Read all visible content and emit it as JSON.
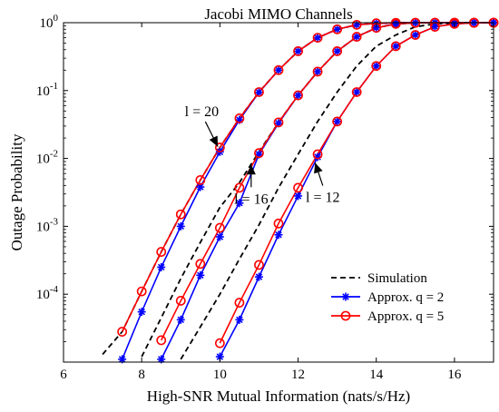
{
  "chart_data": {
    "type": "line",
    "title": "Jacobi MIMO Channels",
    "xlabel": "High-SNR Mutual Information (nats/s/Hz)",
    "ylabel": "Outage Probability",
    "xlim": [
      6,
      17
    ],
    "ylim": [
      1e-05,
      1
    ],
    "yscale": "log",
    "grid": false,
    "legend_position": "bottom-right",
    "x_ticks": [
      "6",
      "8",
      "10",
      "12",
      "14",
      "16"
    ],
    "y_tick_labels": [
      {
        "base": "10",
        "exp": "0"
      },
      {
        "base": "10",
        "exp": "-1"
      },
      {
        "base": "10",
        "exp": "-2"
      },
      {
        "base": "10",
        "exp": "-3"
      },
      {
        "base": "10",
        "exp": "-4"
      }
    ],
    "legend": [
      "Simulation",
      "Approx. q = 2",
      "Approx. q = 5"
    ],
    "annotations": [
      {
        "text": "l = 20",
        "x": 10,
        "y": 0.013
      },
      {
        "text": "l = 16",
        "x": 10.8,
        "y": 0.0095
      },
      {
        "text": "l =  12",
        "x": 12.4,
        "y": 0.01
      }
    ],
    "colors": {
      "simulation": "#000000",
      "q2": "#0000ff",
      "q5": "#ff0000"
    },
    "series": [
      {
        "name": "Simulation",
        "group": "l = 20",
        "style": "dashed",
        "x": [
          7.0,
          7.5,
          8.0,
          8.5,
          9.0,
          9.5,
          10.0,
          10.5,
          11.0,
          11.5,
          12.0,
          12.5,
          13.0,
          13.5,
          14.0,
          14.5,
          15.0,
          15.5,
          16.0,
          16.5,
          17.0
        ],
        "y": [
          1.3e-05,
          2.8e-05,
          0.00011,
          0.00042,
          0.0015,
          0.0048,
          0.0145,
          0.039,
          0.095,
          0.2,
          0.38,
          0.6,
          0.8,
          0.93,
          0.98,
          0.997,
          1,
          1,
          1,
          1,
          1
        ]
      },
      {
        "name": "Approx. q = 2",
        "group": "l = 20",
        "x": [
          7.5,
          8.0,
          8.5,
          9.0,
          9.5,
          10.0,
          10.5,
          11.0,
          11.5,
          12.0,
          12.5,
          13.0,
          13.5,
          14.0,
          14.5,
          15.0,
          15.5,
          16.0,
          16.5,
          17.0
        ],
        "y": [
          1.1e-05,
          5.5e-05,
          0.00025,
          0.001,
          0.0038,
          0.0125,
          0.037,
          0.094,
          0.2,
          0.38,
          0.6,
          0.8,
          0.93,
          0.98,
          0.997,
          1,
          1,
          1,
          1,
          1
        ]
      },
      {
        "name": "Approx. q = 5",
        "group": "l = 20",
        "x": [
          7.5,
          8.0,
          8.5,
          9.0,
          9.5,
          10.0,
          10.5,
          11.0,
          11.5,
          12.0,
          12.5,
          13.0,
          13.5,
          14.0,
          14.5,
          15.0,
          15.5,
          16.0,
          16.5,
          17.0
        ],
        "y": [
          2.8e-05,
          0.00011,
          0.00042,
          0.0015,
          0.0048,
          0.0145,
          0.039,
          0.095,
          0.2,
          0.38,
          0.6,
          0.8,
          0.93,
          0.98,
          0.997,
          1,
          1,
          1,
          1,
          1
        ]
      },
      {
        "name": "Simulation",
        "group": "l = 16",
        "style": "dashed",
        "x": [
          8.0,
          8.5,
          9.0,
          9.5,
          10.0,
          10.5,
          11.0,
          11.5,
          12.0,
          12.5,
          13.0,
          13.5,
          14.0,
          14.5,
          15.0,
          15.5,
          16.0,
          16.5,
          17.0
        ],
        "y": [
          1.2e-05,
          4.5e-05,
          0.00017,
          0.00058,
          0.0019,
          0.0044,
          0.0125,
          0.034,
          0.085,
          0.19,
          0.38,
          0.62,
          0.84,
          0.96,
          0.995,
          1,
          1,
          1,
          1
        ]
      },
      {
        "name": "Approx. q = 2",
        "group": "l = 16",
        "x": [
          8.5,
          9.0,
          9.5,
          10.0,
          10.5,
          11.0,
          11.5,
          12.0,
          12.5,
          13.0,
          13.5,
          14.0,
          14.5,
          15.0,
          15.5,
          16.0,
          16.5,
          17.0
        ],
        "y": [
          1.1e-05,
          4.2e-05,
          0.00019,
          0.0007,
          0.0022,
          0.0115,
          0.033,
          0.085,
          0.19,
          0.38,
          0.62,
          0.84,
          0.96,
          0.995,
          1,
          1,
          1,
          1
        ]
      },
      {
        "name": "Approx. q = 5",
        "group": "l = 16",
        "x": [
          8.5,
          9.0,
          9.5,
          10.0,
          10.5,
          11.0,
          11.5,
          12.0,
          12.5,
          13.0,
          13.5,
          14.0,
          14.5,
          15.0,
          15.5,
          16.0,
          16.5,
          17.0
        ],
        "y": [
          2.1e-05,
          8e-05,
          0.00028,
          0.00095,
          0.0037,
          0.012,
          0.034,
          0.085,
          0.19,
          0.38,
          0.62,
          0.84,
          0.96,
          0.995,
          1,
          1,
          1,
          1
        ]
      },
      {
        "name": "Simulation",
        "group": "l = 12",
        "style": "dashed",
        "x": [
          9.0,
          9.5,
          10.0,
          10.5,
          11.0,
          11.5,
          12.0,
          12.5,
          13.0,
          13.5,
          14.0,
          14.5,
          15.0,
          15.5,
          16.0,
          16.5,
          17.0
        ],
        "y": [
          1.1e-05,
          3.3e-05,
          0.0001,
          0.00033,
          0.00105,
          0.0037,
          0.0115,
          0.035,
          0.095,
          0.23,
          0.45,
          0.66,
          0.87,
          0.96,
          0.995,
          1,
          1
        ]
      },
      {
        "name": "Approx. q = 2",
        "group": "l = 12",
        "x": [
          10.0,
          10.5,
          11.0,
          11.5,
          12.0,
          12.5,
          13.0,
          13.5,
          14.0,
          14.5,
          15.0,
          15.5,
          16.0,
          16.5,
          17.0
        ],
        "y": [
          1.2e-05,
          4.2e-05,
          0.00018,
          0.00075,
          0.0028,
          0.0105,
          0.035,
          0.095,
          0.23,
          0.45,
          0.66,
          0.87,
          0.96,
          0.995,
          1
        ]
      },
      {
        "name": "Approx. q = 5",
        "group": "l = 12",
        "x": [
          10.0,
          10.5,
          11.0,
          11.5,
          12.0,
          12.5,
          13.0,
          13.5,
          14.0,
          14.5,
          15.0,
          15.5,
          16.0,
          16.5,
          17.0
        ],
        "y": [
          1.9e-05,
          7.5e-05,
          0.00027,
          0.0011,
          0.0037,
          0.0115,
          0.035,
          0.095,
          0.23,
          0.45,
          0.66,
          0.87,
          0.96,
          0.995,
          1
        ]
      }
    ]
  }
}
